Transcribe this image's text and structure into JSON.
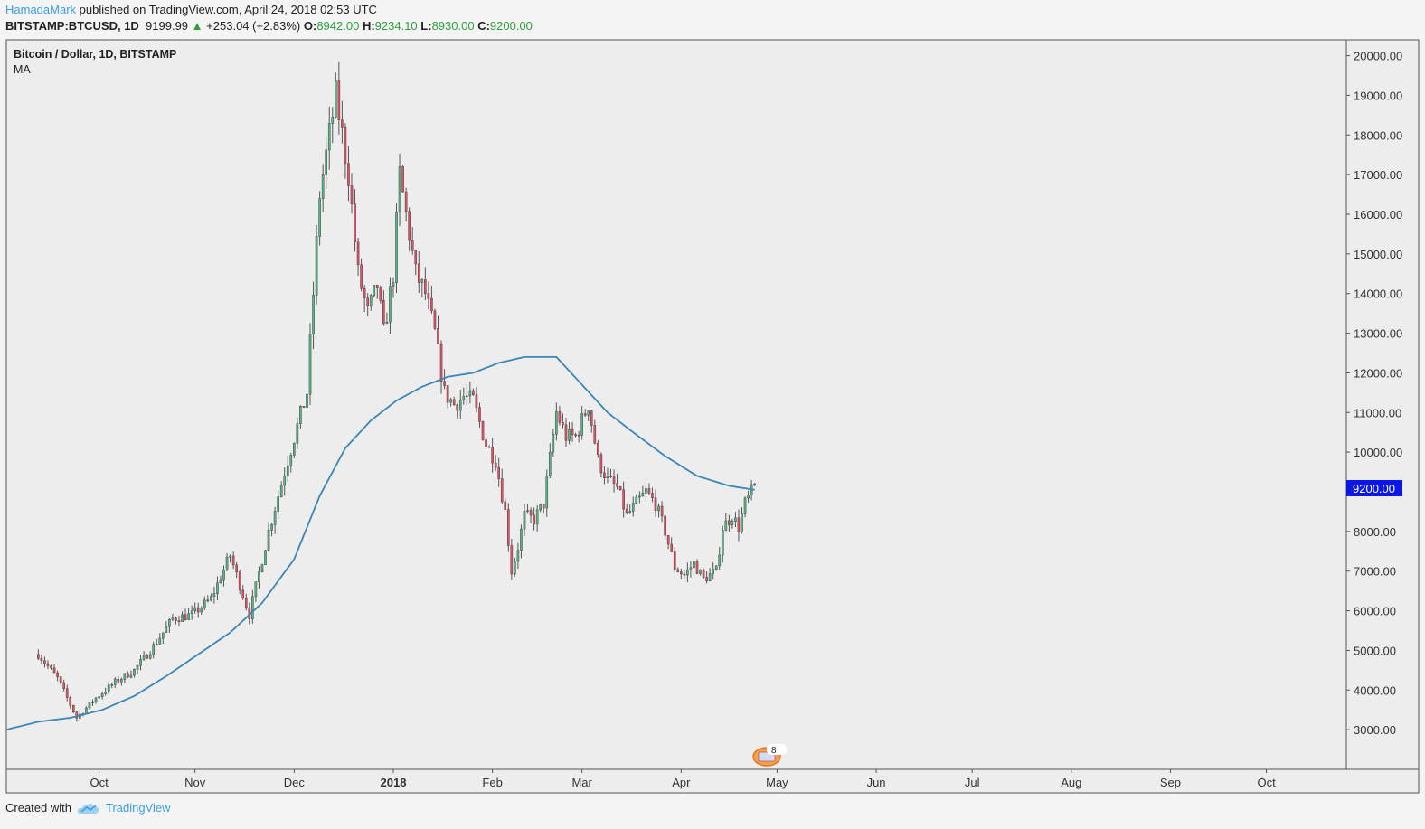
{
  "header": {
    "author": "HamadaMark",
    "published_text": " published on TradingView.com, April 24, 2018 02:53 UTC"
  },
  "quote": {
    "symbol": "BITSTAMP:BTCUSD, 1D",
    "last": "9199.99",
    "arrow": "▲",
    "change": "+253.04 (+2.83%)",
    "open_label": "O:",
    "open": "8942.00",
    "high_label": "H:",
    "high": "9234.10",
    "low_label": "L:",
    "low": "8930.00",
    "close_label": "C:",
    "close": "9200.00"
  },
  "footer": {
    "created_with": "Created with",
    "brand": "TradingView",
    "brand_icon": "tradingview-cloud-icon"
  },
  "chart_data": {
    "type": "candlestick",
    "title": "Bitcoin / Dollar, 1D, BITSTAMP",
    "indicator_label": "MA",
    "ylim": [
      2000,
      20400
    ],
    "y_ticks": [
      "20000.00",
      "19000.00",
      "18000.00",
      "17000.00",
      "16000.00",
      "15000.00",
      "14000.00",
      "13000.00",
      "12000.00",
      "11000.00",
      "10000.00",
      "9000.00",
      "8000.00",
      "7000.00",
      "6000.00",
      "5000.00",
      "4000.00",
      "3000.00"
    ],
    "x_tick_labels": [
      "Oct",
      "Nov",
      "Dec",
      "2018",
      "Feb",
      "Mar",
      "Apr",
      "May",
      "Jun",
      "Jul",
      "Aug",
      "Sep",
      "Oct"
    ],
    "x_tick_days": [
      19,
      49,
      80,
      111,
      142,
      170,
      201,
      231,
      262,
      292,
      323,
      354,
      384
    ],
    "x_range_days": [
      -10,
      409
    ],
    "last_price_label": "9200.00",
    "event_badge_count": "8",
    "candle_anchors": [
      [
        0,
        4900
      ],
      [
        6,
        4300
      ],
      [
        12,
        3300
      ],
      [
        18,
        3800
      ],
      [
        24,
        4200
      ],
      [
        30,
        4500
      ],
      [
        36,
        5100
      ],
      [
        42,
        5800
      ],
      [
        48,
        5900
      ],
      [
        54,
        6300
      ],
      [
        60,
        7400
      ],
      [
        66,
        5900
      ],
      [
        72,
        8000
      ],
      [
        78,
        9800
      ],
      [
        84,
        11500
      ],
      [
        88,
        16500
      ],
      [
        93,
        19000
      ],
      [
        97,
        17000
      ],
      [
        100,
        14500
      ],
      [
        103,
        13500
      ],
      [
        106,
        14200
      ],
      [
        108,
        13000
      ],
      [
        111,
        14500
      ],
      [
        113,
        17000
      ],
      [
        115,
        16000
      ],
      [
        118,
        14500
      ],
      [
        121,
        14000
      ],
      [
        124,
        13000
      ],
      [
        127,
        11500
      ],
      [
        130,
        11200
      ],
      [
        133,
        11400
      ],
      [
        136,
        11300
      ],
      [
        140,
        10200
      ],
      [
        143,
        9800
      ],
      [
        146,
        8500
      ],
      [
        148,
        7000
      ],
      [
        150,
        7600
      ],
      [
        152,
        8400
      ],
      [
        155,
        8300
      ],
      [
        158,
        8700
      ],
      [
        162,
        11000
      ],
      [
        165,
        10400
      ],
      [
        168,
        10400
      ],
      [
        170,
        10800
      ],
      [
        172,
        11200
      ],
      [
        175,
        9800
      ],
      [
        178,
        9300
      ],
      [
        181,
        9100
      ],
      [
        184,
        8400
      ],
      [
        187,
        8700
      ],
      [
        190,
        9000
      ],
      [
        193,
        8700
      ],
      [
        196,
        8000
      ],
      [
        199,
        7100
      ],
      [
        202,
        6900
      ],
      [
        205,
        7200
      ],
      [
        208,
        6800
      ],
      [
        212,
        7000
      ],
      [
        214,
        8100
      ],
      [
        217,
        8400
      ],
      [
        219,
        8100
      ],
      [
        221,
        8700
      ],
      [
        223,
        9000
      ],
      [
        224,
        9200
      ]
    ],
    "ma_anchors": [
      [
        -10,
        3000
      ],
      [
        0,
        3200
      ],
      [
        10,
        3300
      ],
      [
        20,
        3500
      ],
      [
        30,
        3850
      ],
      [
        40,
        4350
      ],
      [
        50,
        4900
      ],
      [
        60,
        5450
      ],
      [
        70,
        6200
      ],
      [
        80,
        7300
      ],
      [
        88,
        8900
      ],
      [
        96,
        10100
      ],
      [
        104,
        10800
      ],
      [
        112,
        11300
      ],
      [
        120,
        11650
      ],
      [
        128,
        11900
      ],
      [
        136,
        12000
      ],
      [
        144,
        12250
      ],
      [
        152,
        12400
      ],
      [
        162,
        12400
      ],
      [
        170,
        11700
      ],
      [
        178,
        11000
      ],
      [
        186,
        10500
      ],
      [
        196,
        9900
      ],
      [
        206,
        9400
      ],
      [
        216,
        9150
      ],
      [
        224,
        9050
      ]
    ]
  },
  "colors": {
    "background": "#f4f4f4",
    "plot_bg": "#ededed",
    "up": "#53b987",
    "down": "#eb4d5c",
    "ma_line": "#3b86b5",
    "price_label_bg": "#0b17e6"
  }
}
